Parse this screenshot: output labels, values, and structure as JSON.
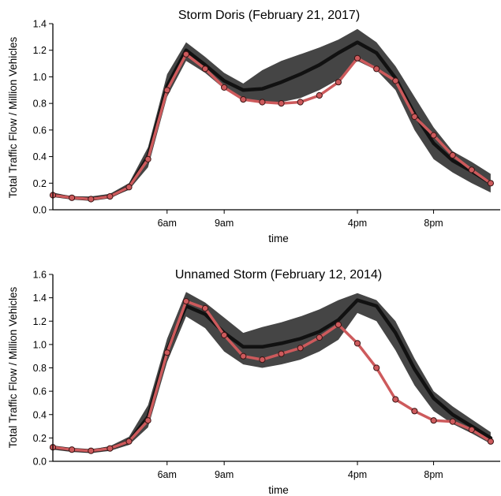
{
  "colors": {
    "band": "#454545",
    "mean_line": "#111111",
    "storm_line": "#cd5a5c",
    "marker_fill": "#cd5a5c",
    "marker_edge": "#3a1414"
  },
  "chart_data": [
    {
      "type": "line",
      "title": "Storm Doris (February 21, 2017)",
      "xlabel": "time",
      "ylabel": "Total Traffic Flow / Million Vehicles",
      "xlim": [
        0,
        23.5
      ],
      "ylim": [
        0,
        1.4
      ],
      "xticks": [
        {
          "value": 6,
          "label": "6am"
        },
        {
          "value": 9,
          "label": "9am"
        },
        {
          "value": 16,
          "label": "4pm"
        },
        {
          "value": 20,
          "label": "8pm"
        }
      ],
      "yticks": [
        0.0,
        0.2,
        0.4,
        0.6,
        0.8,
        1.0,
        1.2,
        1.4
      ],
      "ytick_labels": [
        "0.0",
        "0.2",
        "0.4",
        "0.6",
        "0.8",
        "1.0",
        "1.2",
        "1.4"
      ],
      "grid": false,
      "x": [
        0,
        1,
        2,
        3,
        4,
        5,
        6,
        7,
        8,
        9,
        10,
        11,
        12,
        13,
        14,
        15,
        16,
        17,
        18,
        19,
        20,
        21,
        22,
        23
      ],
      "series": [
        {
          "role": "typical-day-range",
          "lower": [
            0.1,
            0.08,
            0.07,
            0.09,
            0.15,
            0.32,
            0.85,
            1.12,
            1.03,
            0.91,
            0.82,
            0.81,
            0.81,
            0.84,
            0.9,
            0.98,
            1.12,
            1.05,
            0.9,
            0.6,
            0.38,
            0.28,
            0.2,
            0.13
          ],
          "upper": [
            0.13,
            0.1,
            0.1,
            0.12,
            0.2,
            0.47,
            1.02,
            1.26,
            1.15,
            1.03,
            0.95,
            1.05,
            1.12,
            1.17,
            1.22,
            1.28,
            1.36,
            1.26,
            1.08,
            0.85,
            0.62,
            0.44,
            0.36,
            0.27
          ]
        },
        {
          "role": "typical-day-mean",
          "values": [
            0.11,
            0.09,
            0.08,
            0.1,
            0.17,
            0.4,
            0.93,
            1.2,
            1.09,
            0.97,
            0.9,
            0.91,
            0.96,
            1.02,
            1.09,
            1.18,
            1.26,
            1.18,
            0.99,
            0.72,
            0.5,
            0.37,
            0.29,
            0.2
          ]
        },
        {
          "role": "storm-day",
          "values": [
            0.11,
            0.09,
            0.08,
            0.1,
            0.17,
            0.38,
            0.9,
            1.17,
            1.06,
            0.92,
            0.83,
            0.81,
            0.8,
            0.81,
            0.86,
            0.96,
            1.14,
            1.06,
            0.97,
            0.7,
            0.56,
            0.41,
            0.3,
            0.2
          ]
        }
      ]
    },
    {
      "type": "line",
      "title": "Unnamed Storm (February 12, 2014)",
      "xlabel": "time",
      "ylabel": "Total Traffic Flow / Million Vehicles",
      "xlim": [
        0,
        23.5
      ],
      "ylim": [
        0,
        1.6
      ],
      "xticks": [
        {
          "value": 6,
          "label": "6am"
        },
        {
          "value": 9,
          "label": "9am"
        },
        {
          "value": 16,
          "label": "4pm"
        },
        {
          "value": 20,
          "label": "8pm"
        }
      ],
      "yticks": [
        0.0,
        0.2,
        0.4,
        0.6,
        0.8,
        1.0,
        1.2,
        1.4,
        1.6
      ],
      "ytick_labels": [
        "0.0",
        "0.2",
        "0.4",
        "0.6",
        "0.8",
        "1.0",
        "1.2",
        "1.4",
        "1.6"
      ],
      "grid": false,
      "x": [
        0,
        1,
        2,
        3,
        4,
        5,
        6,
        7,
        8,
        9,
        10,
        11,
        12,
        13,
        14,
        15,
        16,
        17,
        18,
        19,
        20,
        21,
        22,
        23
      ],
      "series": [
        {
          "role": "typical-day-range",
          "lower": [
            0.1,
            0.08,
            0.07,
            0.09,
            0.14,
            0.29,
            0.85,
            1.24,
            1.14,
            0.94,
            0.83,
            0.8,
            0.83,
            0.87,
            0.94,
            1.04,
            1.27,
            1.2,
            0.95,
            0.65,
            0.43,
            0.32,
            0.24,
            0.15
          ],
          "upper": [
            0.13,
            0.11,
            0.1,
            0.13,
            0.21,
            0.48,
            1.05,
            1.45,
            1.36,
            1.23,
            1.1,
            1.15,
            1.19,
            1.24,
            1.3,
            1.38,
            1.44,
            1.38,
            1.2,
            0.88,
            0.6,
            0.47,
            0.36,
            0.25
          ]
        },
        {
          "role": "typical-day-mean",
          "values": [
            0.12,
            0.1,
            0.09,
            0.11,
            0.17,
            0.38,
            0.95,
            1.33,
            1.26,
            1.1,
            0.98,
            0.98,
            1.01,
            1.05,
            1.11,
            1.21,
            1.38,
            1.33,
            1.1,
            0.79,
            0.54,
            0.4,
            0.3,
            0.2
          ]
        },
        {
          "role": "storm-day",
          "values": [
            0.12,
            0.1,
            0.09,
            0.11,
            0.17,
            0.35,
            0.93,
            1.37,
            1.31,
            1.08,
            0.9,
            0.87,
            0.92,
            0.97,
            1.06,
            1.17,
            1.01,
            0.8,
            0.53,
            0.43,
            0.35,
            0.34,
            0.27,
            0.17
          ]
        }
      ]
    }
  ]
}
